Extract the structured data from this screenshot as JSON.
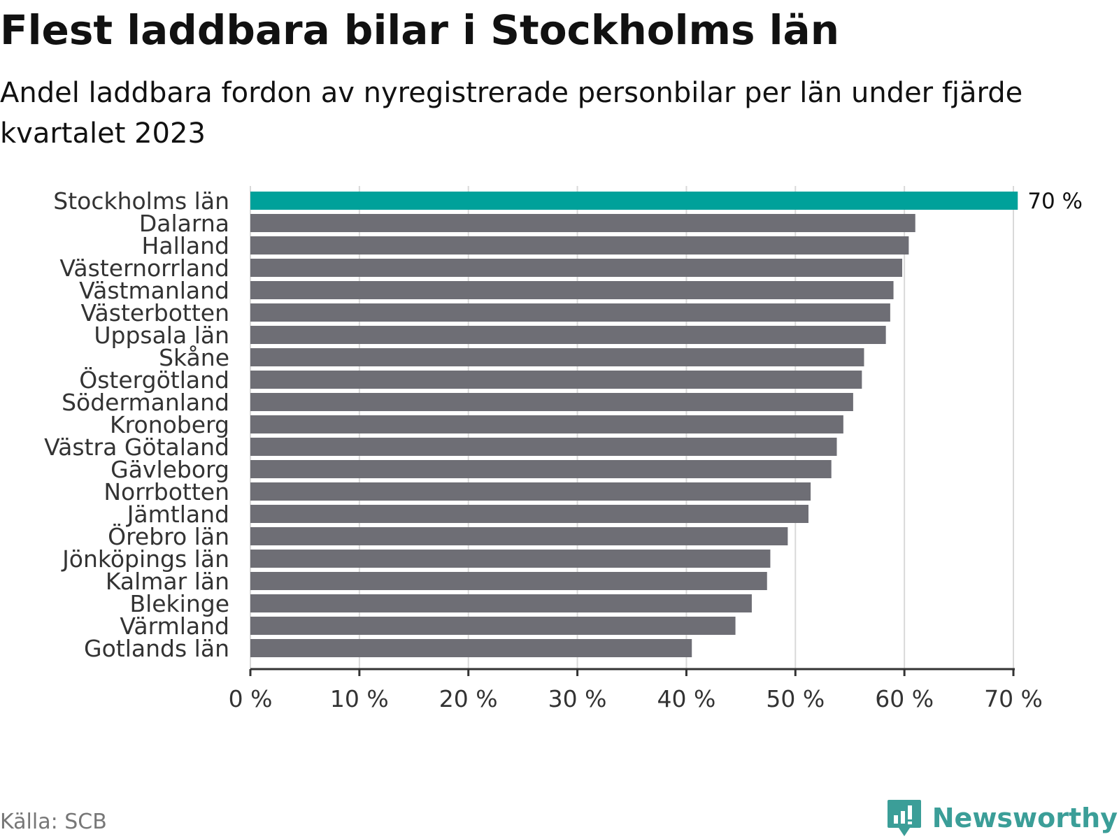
{
  "header": {
    "title": "Flest laddbara bilar i Stockholms län",
    "subtitle": "Andel laddbara fordon av nyregistrerade personbilar per län under fjärde kvartalet 2023"
  },
  "footer": {
    "source": "Källa: SCB",
    "brand": "Newsworthy",
    "brand_icon": "newsworthy-logo-icon"
  },
  "colors": {
    "highlight": "#00a19a",
    "bar": "#6e6e75",
    "grid": "#d9d9d9",
    "axis": "#333333",
    "text": "#111111",
    "brand": "#3b9e98"
  },
  "chart_data": {
    "type": "bar",
    "orientation": "horizontal",
    "title": "Flest laddbara bilar i Stockholms län",
    "subtitle": "Andel laddbara fordon av nyregistrerade personbilar per län under fjärde kvartalet 2023",
    "xlabel": "",
    "ylabel": "",
    "xlim": [
      0,
      70
    ],
    "grid": true,
    "ticks": [
      0,
      10,
      20,
      30,
      40,
      50,
      60,
      70
    ],
    "tick_labels": [
      "0 %",
      "10 %",
      "20 %",
      "30 %",
      "40 %",
      "50 %",
      "60 %",
      "70 %"
    ],
    "highlight_category": "Stockholms län",
    "highlight_label": "70 %",
    "categories": [
      "Stockholms län",
      "Dalarna",
      "Halland",
      "Västernorrland",
      "Västmanland",
      "Västerbotten",
      "Uppsala län",
      "Skåne",
      "Östergötland",
      "Södermanland",
      "Kronoberg",
      "Västra Götaland",
      "Gävleborg",
      "Norrbotten",
      "Jämtland",
      "Örebro län",
      "Jönköpings län",
      "Kalmar län",
      "Blekinge",
      "Värmland",
      "Gotlands län"
    ],
    "values": [
      70.4,
      61.0,
      60.4,
      59.8,
      59.0,
      58.7,
      58.3,
      56.3,
      56.1,
      55.3,
      54.4,
      53.8,
      53.3,
      51.4,
      51.2,
      49.3,
      47.7,
      47.4,
      46.0,
      44.5,
      40.5
    ]
  }
}
